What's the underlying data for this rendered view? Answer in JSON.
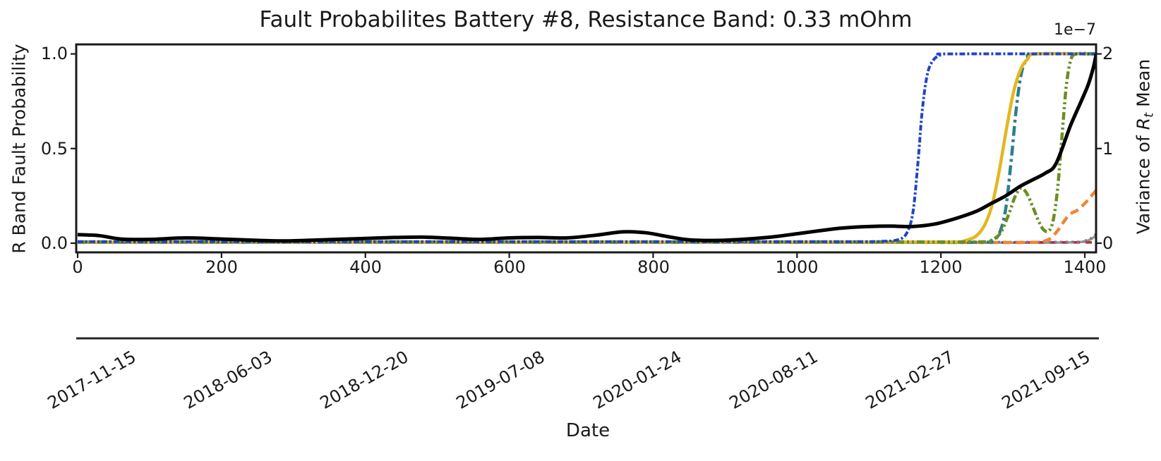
{
  "chart_data": {
    "type": "line",
    "title": "Fault Probabilites Battery #8, Resistance Band: 0.33 mOhm",
    "x_axis": {
      "label": "Date",
      "numeric_ticks": [
        "0",
        "200",
        "400",
        "600",
        "800",
        "1000",
        "1200",
        "1400"
      ],
      "numeric_tick_values": [
        0,
        200,
        400,
        600,
        800,
        1000,
        1200,
        1400
      ],
      "date_ticks": [
        "2017-11-15",
        "2018-06-03",
        "2018-12-20",
        "2019-07-08",
        "2020-01-24",
        "2020-08-11",
        "2021-02-27",
        "2021-09-15"
      ],
      "range": [
        0,
        1416
      ],
      "grid": false
    },
    "left_axis": {
      "label": "R Band Fault Probability",
      "ticks": [
        "0.0",
        "0.5",
        "1.0"
      ],
      "tick_values": [
        0,
        0.5,
        1
      ],
      "range": [
        0,
        1
      ]
    },
    "right_axis": {
      "label_prefix": "Variance of ",
      "label_var": "R",
      "label_sub": "t",
      "label_suffix": " Mean",
      "offset_text": "1e−7",
      "ticks": [
        "0",
        "1",
        "2"
      ],
      "tick_values": [
        0,
        1,
        2
      ],
      "range": [
        0,
        2
      ],
      "unit_scale": "1e-7"
    },
    "legend": "none",
    "series": [
      {
        "name": "baseline-darkseagreen-solid",
        "color": "#8d9f84",
        "dash": "",
        "width": 3.5,
        "axis": "left",
        "points": [
          [
            0,
            0.003
          ],
          [
            300,
            0.003
          ],
          [
            600,
            0.003
          ],
          [
            900,
            0.003
          ],
          [
            1200,
            0.003
          ],
          [
            1340,
            0.003
          ],
          [
            1380,
            0.004
          ],
          [
            1398,
            0.008
          ],
          [
            1408,
            0.02
          ],
          [
            1416,
            0.042
          ]
        ]
      },
      {
        "name": "baseline-firebrick-dashed",
        "color": "#a93226",
        "dash": "9 8",
        "width": 3.5,
        "axis": "left",
        "points": [
          [
            0,
            0.004
          ],
          [
            300,
            0.004
          ],
          [
            600,
            0.004
          ],
          [
            900,
            0.004
          ],
          [
            1200,
            0.004
          ],
          [
            1416,
            0.004
          ]
        ]
      },
      {
        "name": "baseline-purple-dotted",
        "color": "#9467bd",
        "dash": "3 5",
        "width": 3.5,
        "axis": "left",
        "points": [
          [
            0,
            0.006
          ],
          [
            300,
            0.006
          ],
          [
            600,
            0.006
          ],
          [
            900,
            0.006
          ],
          [
            1200,
            0.006
          ],
          [
            1380,
            0.007
          ],
          [
            1398,
            0.012
          ],
          [
            1408,
            0.025
          ],
          [
            1416,
            0.05
          ]
        ]
      },
      {
        "name": "fault-prob-orange-dashed",
        "color": "#ef8636",
        "dash": "12 7",
        "width": 4.5,
        "axis": "left",
        "points": [
          [
            0,
            0.004
          ],
          [
            400,
            0.004
          ],
          [
            800,
            0.004
          ],
          [
            1200,
            0.004
          ],
          [
            1320,
            0.004
          ],
          [
            1340,
            0.008
          ],
          [
            1352,
            0.025
          ],
          [
            1363,
            0.07
          ],
          [
            1372,
            0.12
          ],
          [
            1380,
            0.155
          ],
          [
            1390,
            0.175
          ],
          [
            1400,
            0.21
          ],
          [
            1408,
            0.245
          ],
          [
            1416,
            0.28
          ]
        ]
      },
      {
        "name": "fault-prob-teal-dashdot",
        "color": "#2b7f8e",
        "dash": "14 5 4 5",
        "width": 4.5,
        "axis": "left",
        "points": [
          [
            0,
            0.005
          ],
          [
            400,
            0.005
          ],
          [
            800,
            0.005
          ],
          [
            1100,
            0.005
          ],
          [
            1255,
            0.005
          ],
          [
            1270,
            0.012
          ],
          [
            1281,
            0.05
          ],
          [
            1290,
            0.18
          ],
          [
            1298,
            0.45
          ],
          [
            1305,
            0.72
          ],
          [
            1312,
            0.9
          ],
          [
            1320,
            0.975
          ],
          [
            1330,
            1.0
          ],
          [
            1416,
            1.0
          ]
        ]
      },
      {
        "name": "fault-prob-yellow-solid",
        "color": "#e3b71e",
        "dash": "",
        "width": 4.5,
        "axis": "left",
        "points": [
          [
            0,
            0.006
          ],
          [
            400,
            0.006
          ],
          [
            800,
            0.006
          ],
          [
            1100,
            0.006
          ],
          [
            1215,
            0.006
          ],
          [
            1232,
            0.012
          ],
          [
            1248,
            0.035
          ],
          [
            1260,
            0.09
          ],
          [
            1271,
            0.2
          ],
          [
            1281,
            0.38
          ],
          [
            1291,
            0.6
          ],
          [
            1301,
            0.8
          ],
          [
            1311,
            0.92
          ],
          [
            1321,
            0.975
          ],
          [
            1333,
            1.0
          ],
          [
            1416,
            1.0
          ]
        ]
      },
      {
        "name": "fault-prob-olive-dashdotdot",
        "color": "#6b8e23",
        "dash": "11 4 3 4 3 4",
        "width": 4.5,
        "axis": "left",
        "points": [
          [
            0,
            0.007
          ],
          [
            400,
            0.007
          ],
          [
            800,
            0.007
          ],
          [
            1100,
            0.007
          ],
          [
            1255,
            0.007
          ],
          [
            1270,
            0.015
          ],
          [
            1283,
            0.055
          ],
          [
            1294,
            0.15
          ],
          [
            1303,
            0.245
          ],
          [
            1311,
            0.29
          ],
          [
            1319,
            0.265
          ],
          [
            1328,
            0.19
          ],
          [
            1336,
            0.115
          ],
          [
            1343,
            0.07
          ],
          [
            1350,
            0.065
          ],
          [
            1356,
            0.12
          ],
          [
            1362,
            0.28
          ],
          [
            1368,
            0.55
          ],
          [
            1374,
            0.82
          ],
          [
            1380,
            0.96
          ],
          [
            1388,
            1.0
          ],
          [
            1416,
            1.0
          ]
        ]
      },
      {
        "name": "fault-prob-blue-dashdot",
        "color": "#2144c7",
        "dash": "8 3 3 3",
        "width": 4,
        "axis": "left",
        "points": [
          [
            0,
            0.008
          ],
          [
            300,
            0.008
          ],
          [
            600,
            0.008
          ],
          [
            900,
            0.008
          ],
          [
            1080,
            0.008
          ],
          [
            1120,
            0.01
          ],
          [
            1140,
            0.018
          ],
          [
            1152,
            0.05
          ],
          [
            1161,
            0.16
          ],
          [
            1168,
            0.42
          ],
          [
            1174,
            0.7
          ],
          [
            1181,
            0.89
          ],
          [
            1189,
            0.965
          ],
          [
            1200,
            0.995
          ],
          [
            1215,
            1.0
          ],
          [
            1416,
            1.0
          ]
        ]
      },
      {
        "name": "variance-black-solid",
        "color": "#000000",
        "dash": "",
        "width": 5,
        "axis": "right",
        "points": [
          [
            0,
            0.09
          ],
          [
            30,
            0.08
          ],
          [
            60,
            0.044
          ],
          [
            100,
            0.04
          ],
          [
            150,
            0.056
          ],
          [
            200,
            0.044
          ],
          [
            250,
            0.03
          ],
          [
            290,
            0.024
          ],
          [
            340,
            0.036
          ],
          [
            390,
            0.048
          ],
          [
            440,
            0.06
          ],
          [
            480,
            0.064
          ],
          [
            520,
            0.052
          ],
          [
            560,
            0.04
          ],
          [
            600,
            0.056
          ],
          [
            640,
            0.06
          ],
          [
            680,
            0.056
          ],
          [
            720,
            0.084
          ],
          [
            758,
            0.12
          ],
          [
            790,
            0.11
          ],
          [
            820,
            0.07
          ],
          [
            850,
            0.036
          ],
          [
            890,
            0.03
          ],
          [
            930,
            0.044
          ],
          [
            970,
            0.07
          ],
          [
            1000,
            0.1
          ],
          [
            1030,
            0.13
          ],
          [
            1063,
            0.16
          ],
          [
            1100,
            0.176
          ],
          [
            1130,
            0.18
          ],
          [
            1160,
            0.176
          ],
          [
            1190,
            0.2
          ],
          [
            1220,
            0.26
          ],
          [
            1250,
            0.34
          ],
          [
            1270,
            0.42
          ],
          [
            1290,
            0.5
          ],
          [
            1310,
            0.6
          ],
          [
            1325,
            0.66
          ],
          [
            1345,
            0.74
          ],
          [
            1360,
            0.84
          ],
          [
            1380,
            1.24
          ],
          [
            1395,
            1.5
          ],
          [
            1405,
            1.68
          ],
          [
            1412,
            1.86
          ],
          [
            1416,
            2.0
          ]
        ]
      }
    ]
  }
}
